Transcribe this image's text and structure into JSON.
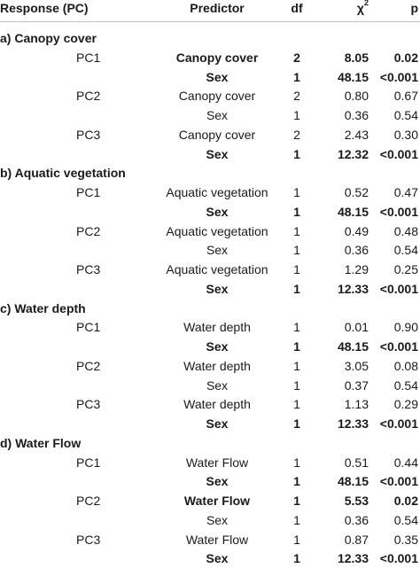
{
  "header": {
    "response": "Response (PC)",
    "predictor": "Predictor",
    "df": "df",
    "chi_symbol": "χ",
    "chi_sup": "2",
    "p": "p"
  },
  "sections": [
    {
      "title": "a) Canopy cover",
      "rows": [
        {
          "pc": "PC1",
          "predictor": "Canopy cover",
          "df": "2",
          "chi2": "8.05",
          "p": "0.02",
          "bold": true
        },
        {
          "pc": "",
          "predictor": "Sex",
          "df": "1",
          "chi2": "48.15",
          "p": "<0.001",
          "bold": true
        },
        {
          "pc": "PC2",
          "predictor": "Canopy cover",
          "df": "2",
          "chi2": "0.80",
          "p": "0.67",
          "bold": false
        },
        {
          "pc": "",
          "predictor": "Sex",
          "df": "1",
          "chi2": "0.36",
          "p": "0.54",
          "bold": false
        },
        {
          "pc": "PC3",
          "predictor": "Canopy cover",
          "df": "2",
          "chi2": "2.43",
          "p": "0.30",
          "bold": false
        },
        {
          "pc": "",
          "predictor": "Sex",
          "df": "1",
          "chi2": "12.32",
          "p": "<0.001",
          "bold": true
        }
      ]
    },
    {
      "title": "b) Aquatic vegetation",
      "rows": [
        {
          "pc": "PC1",
          "predictor": "Aquatic vegetation",
          "df": "1",
          "chi2": "0.52",
          "p": "0.47",
          "bold": false
        },
        {
          "pc": "",
          "predictor": "Sex",
          "df": "1",
          "chi2": "48.15",
          "p": "<0.001",
          "bold": true
        },
        {
          "pc": "PC2",
          "predictor": "Aquatic vegetation",
          "df": "1",
          "chi2": "0.49",
          "p": "0.48",
          "bold": false
        },
        {
          "pc": "",
          "predictor": "Sex",
          "df": "1",
          "chi2": "0.36",
          "p": "0.54",
          "bold": false
        },
        {
          "pc": "PC3",
          "predictor": "Aquatic vegetation",
          "df": "1",
          "chi2": "1.29",
          "p": "0.25",
          "bold": false
        },
        {
          "pc": "",
          "predictor": "Sex",
          "df": "1",
          "chi2": "12.33",
          "p": "<0.001",
          "bold": true
        }
      ]
    },
    {
      "title": "c) Water depth",
      "rows": [
        {
          "pc": "PC1",
          "predictor": "Water depth",
          "df": "1",
          "chi2": "0.01",
          "p": "0.90",
          "bold": false
        },
        {
          "pc": "",
          "predictor": "Sex",
          "df": "1",
          "chi2": "48.15",
          "p": "<0.001",
          "bold": true
        },
        {
          "pc": "PC2",
          "predictor": "Water depth",
          "df": "1",
          "chi2": "3.05",
          "p": "0.08",
          "bold": false
        },
        {
          "pc": "",
          "predictor": "Sex",
          "df": "1",
          "chi2": "0.37",
          "p": "0.54",
          "bold": false
        },
        {
          "pc": "PC3",
          "predictor": "Water depth",
          "df": "1",
          "chi2": "1.13",
          "p": "0.29",
          "bold": false
        },
        {
          "pc": "",
          "predictor": "Sex",
          "df": "1",
          "chi2": "12.33",
          "p": "<0.001",
          "bold": true
        }
      ]
    },
    {
      "title": "d) Water Flow",
      "rows": [
        {
          "pc": "PC1",
          "predictor": "Water Flow",
          "df": "1",
          "chi2": "0.51",
          "p": "0.44",
          "bold": false
        },
        {
          "pc": "",
          "predictor": "Sex",
          "df": "1",
          "chi2": "48.15",
          "p": "<0.001",
          "bold": true
        },
        {
          "pc": "PC2",
          "predictor": "Water Flow",
          "df": "1",
          "chi2": "5.53",
          "p": "0.02",
          "bold": true
        },
        {
          "pc": "",
          "predictor": "Sex",
          "df": "1",
          "chi2": "0.36",
          "p": "0.54",
          "bold": false
        },
        {
          "pc": "PC3",
          "predictor": "Water Flow",
          "df": "1",
          "chi2": "0.87",
          "p": "0.35",
          "bold": false
        },
        {
          "pc": "",
          "predictor": "Sex",
          "df": "1",
          "chi2": "12.33",
          "p": "<0.001",
          "bold": true
        }
      ]
    }
  ]
}
